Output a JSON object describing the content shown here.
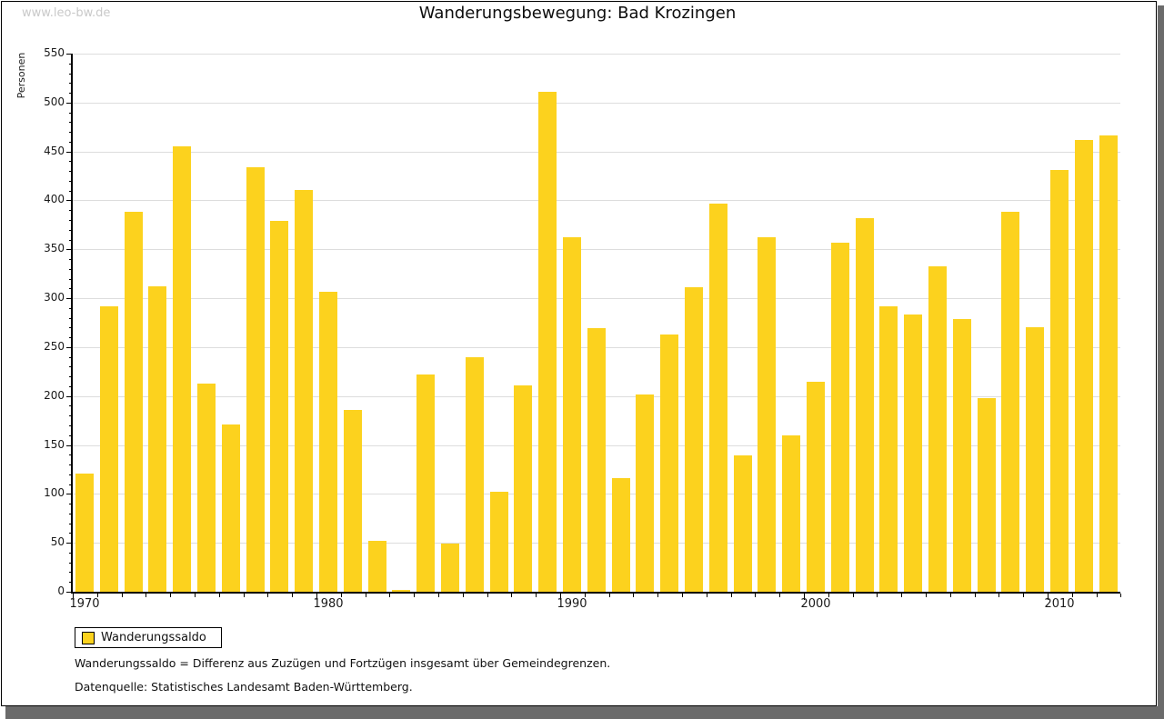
{
  "page": {
    "watermark": "www.leo-bw.de",
    "background_color": "#ffffff",
    "frame_border_color": "#000000",
    "shadow_color": "#6b6b6b"
  },
  "chart_data": {
    "type": "bar",
    "title": "Wanderungsbewegung: Bad Krozingen",
    "ylabel": "Personen",
    "xlabel": "",
    "ylim": [
      0,
      550
    ],
    "y_tick_step": 50,
    "y_minor_tick_step": 10,
    "grid": "horizontal-major",
    "grid_color": "#dddddd",
    "bar_color": "#FCD21E",
    "legend_position": "bottom-left",
    "x_tick_labels": [
      "1970",
      "1980",
      "1990",
      "2000",
      "2010"
    ],
    "categories": [
      1970,
      1971,
      1972,
      1973,
      1974,
      1975,
      1976,
      1977,
      1978,
      1979,
      1980,
      1981,
      1982,
      1983,
      1984,
      1985,
      1986,
      1987,
      1988,
      1989,
      1990,
      1991,
      1992,
      1993,
      1994,
      1995,
      1996,
      1997,
      1998,
      1999,
      2000,
      2001,
      2002,
      2003,
      2004,
      2005,
      2006,
      2007,
      2008,
      2009,
      2010,
      2011,
      2012
    ],
    "series": [
      {
        "name": "Wanderungssaldo",
        "values": [
          121,
          292,
          388,
          312,
          455,
          213,
          171,
          434,
          379,
          411,
          307,
          186,
          52,
          2,
          222,
          49,
          240,
          102,
          211,
          511,
          362,
          269,
          116,
          202,
          263,
          311,
          397,
          139,
          362,
          160,
          215,
          357,
          382,
          292,
          283,
          333,
          279,
          198,
          388,
          270,
          431,
          462,
          466
        ]
      }
    ]
  },
  "legend": {
    "label": "Wanderungssaldo",
    "swatch_color": "#FCD21E"
  },
  "footnotes": {
    "definition": "Wanderungssaldo = Differenz aus Zuzügen und Fortzügen insgesamt über Gemeindegrenzen.",
    "source": "Datenquelle: Statistisches Landesamt Baden-Württemberg."
  }
}
